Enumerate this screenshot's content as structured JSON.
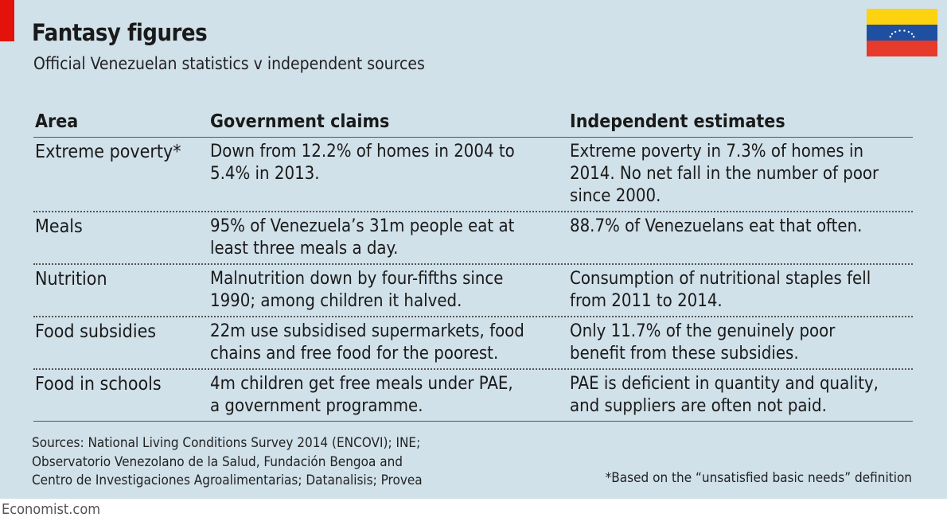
{
  "title": "Fantasy figures",
  "subtitle": "Official Venezuelan statistics v independent sources",
  "colors": {
    "panel_bg": "#d1e1ea",
    "accent_red": "#e3120b",
    "flag_yellow": "#fdd20e",
    "flag_blue": "#1f4fa0",
    "flag_red": "#e63a2b"
  },
  "flag_icon": "venezuela-flag-icon",
  "chart_data": {
    "type": "table",
    "columns": [
      "Area",
      "Government claims",
      "Independent estimates"
    ],
    "rows": [
      {
        "area": "Extreme poverty*",
        "government": [
          "Down from 12.2% of homes in 2004 to",
          "5.4% in 2013."
        ],
        "independent": [
          "Extreme poverty in 7.3% of homes in",
          "2014. No net fall in the number of poor",
          "since 2000."
        ]
      },
      {
        "area": "Meals",
        "government": [
          "95% of Venezuela’s 31m people eat at",
          "least three meals a day."
        ],
        "independent": [
          "88.7% of Venezuelans eat that often."
        ]
      },
      {
        "area": "Nutrition",
        "government": [
          "Malnutrition down by four-fifths since",
          "1990; among children it halved."
        ],
        "independent": [
          "Consumption of nutritional staples fell",
          "from 2011 to 2014."
        ]
      },
      {
        "area": "Food subsidies",
        "government": [
          "22m use subsidised supermarkets, food",
          "chains and free food for the poorest."
        ],
        "independent": [
          "Only 11.7% of the genuinely poor",
          "benefit from these subsidies."
        ]
      },
      {
        "area": "Food in schools",
        "government": [
          "4m children get free meals under PAE,",
          "a government programme."
        ],
        "independent": [
          "PAE is deficient in quantity and quality,",
          "and suppliers are often not paid."
        ]
      }
    ]
  },
  "sources": [
    "Sources: National Living Conditions Survey 2014 (ENCOVI); INE;",
    "Observatorio Venezolano de la Salud, Fundación Bengoa and",
    "Centro de Investigaciones Agroalimentarias; Datanalisis; Provea"
  ],
  "footnote": "*Based on the “unsatisfied basic needs” definition",
  "brand": "Economist.com"
}
